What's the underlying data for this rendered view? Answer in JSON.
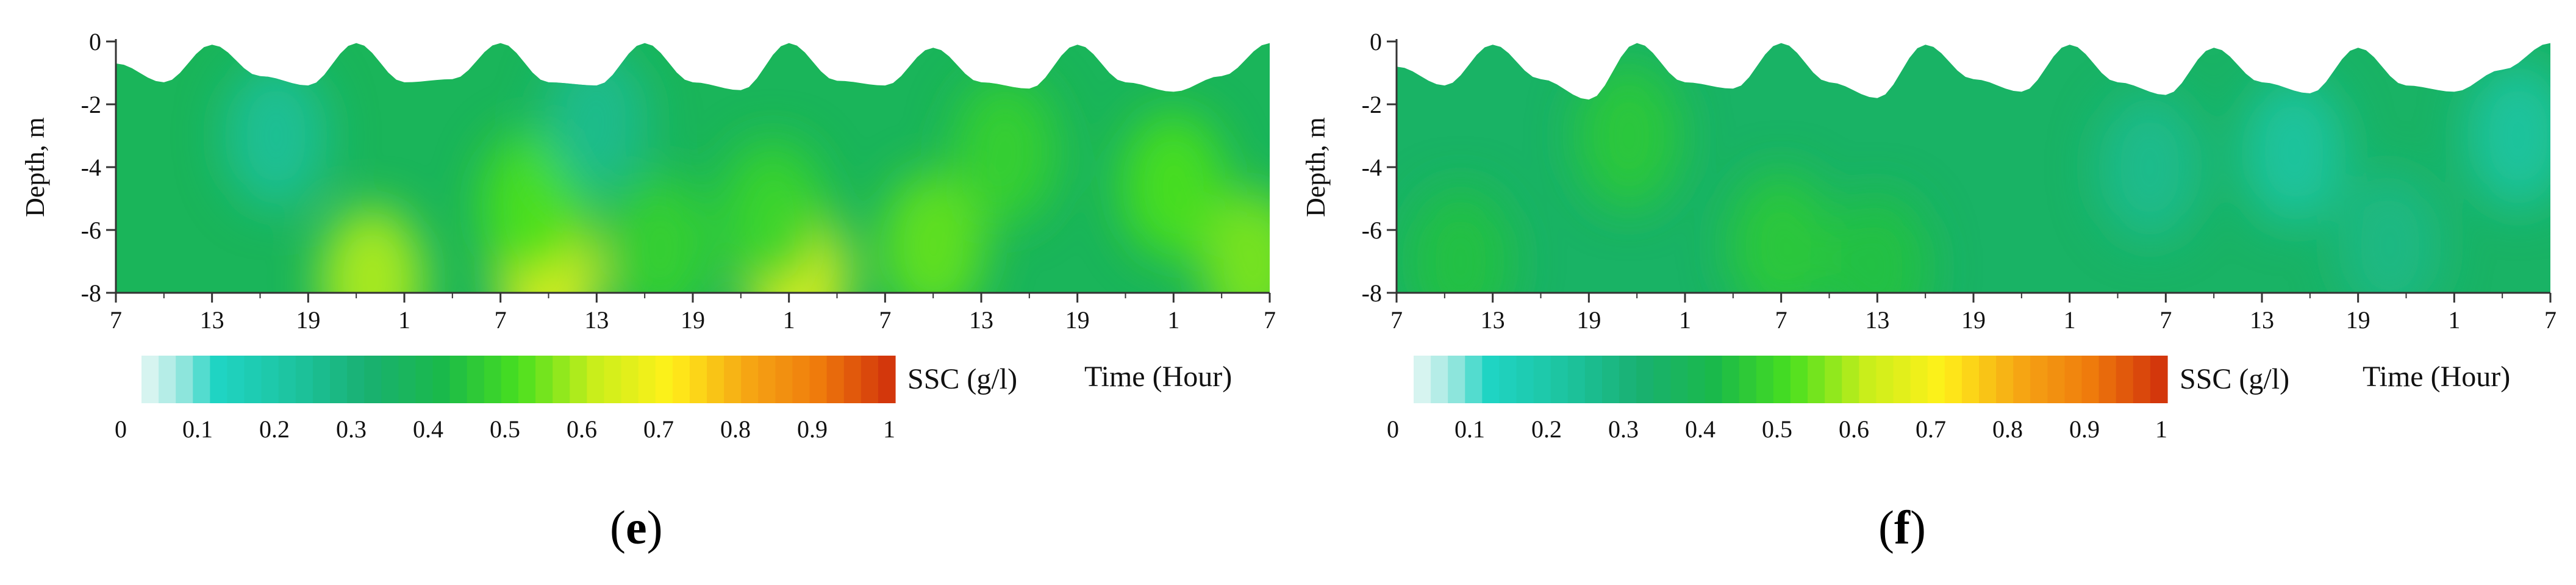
{
  "chart_data": [
    {
      "type": "heatmap",
      "panel_label_open": "(",
      "panel_letter": "e",
      "panel_label_close": ")",
      "ylabel": "Depth, m",
      "xlabel": "Time (Hour)",
      "x_ticks": [
        "7",
        "13",
        "19",
        "1",
        "7",
        "13",
        "19",
        "1",
        "7",
        "13",
        "19",
        "1",
        "7"
      ],
      "x_hours": [
        0,
        6,
        12,
        18,
        24,
        30,
        36,
        42,
        48,
        54,
        60,
        66,
        72
      ],
      "xlim": [
        0,
        72
      ],
      "y_ticks": [
        "0",
        "-2",
        "-4",
        "-6",
        "-8"
      ],
      "y_values": [
        0,
        -2,
        -4,
        -6,
        -8
      ],
      "ylim": [
        -8,
        0
      ],
      "surface_profile": {
        "hours": [
          0,
          3,
          6,
          9,
          12,
          15,
          18,
          21,
          24,
          27,
          30,
          33,
          36,
          39,
          42,
          45,
          48,
          51,
          54,
          57,
          60,
          63,
          66,
          69,
          72
        ],
        "depth": [
          -0.7,
          -1.3,
          -0.1,
          -1.1,
          -1.4,
          -0.05,
          -1.3,
          -1.2,
          -0.05,
          -1.3,
          -1.4,
          -0.05,
          -1.3,
          -1.55,
          -0.05,
          -1.25,
          -1.4,
          -0.2,
          -1.3,
          -1.5,
          -0.1,
          -1.3,
          -1.6,
          -1.1,
          -0.05
        ]
      },
      "ssc_field": {
        "background_ssc": 0.36,
        "patches": [
          {
            "hour": 16,
            "depth": -7.6,
            "ssc": 0.58
          },
          {
            "hour": 27,
            "depth": -7.4,
            "ssc": 0.64
          },
          {
            "hour": 26,
            "depth": -5.2,
            "ssc": 0.5
          },
          {
            "hour": 42.5,
            "depth": -7.5,
            "ssc": 0.64
          },
          {
            "hour": 41,
            "depth": -5.5,
            "ssc": 0.47
          },
          {
            "hour": 51,
            "depth": -6.5,
            "ssc": 0.52
          },
          {
            "hour": 55.5,
            "depth": -3.5,
            "ssc": 0.46
          },
          {
            "hour": 66,
            "depth": -4.6,
            "ssc": 0.5
          },
          {
            "hour": 71,
            "depth": -7.1,
            "ssc": 0.54
          },
          {
            "hour": 34,
            "depth": -6.6,
            "ssc": 0.46
          },
          {
            "hour": 10,
            "depth": -3,
            "ssc": 0.22
          },
          {
            "hour": 30,
            "depth": -2.5,
            "ssc": 0.24
          }
        ]
      },
      "colorbar": {
        "label": "SSC (g/l)",
        "min": 0,
        "max": 1,
        "tick_labels": [
          "0",
          "0.1",
          "0.2",
          "0.3",
          "0.4",
          "0.5",
          "0.6",
          "0.7",
          "0.8",
          "0.9",
          "1"
        ],
        "tick_values": [
          0,
          0.1,
          0.2,
          0.3,
          0.4,
          0.5,
          0.6,
          0.7,
          0.8,
          0.9,
          1
        ],
        "stops": [
          {
            "v": 0,
            "c": "#e6f7f5"
          },
          {
            "v": 0.05,
            "c": "#9ee8e0"
          },
          {
            "v": 0.1,
            "c": "#1fd4c4"
          },
          {
            "v": 0.2,
            "c": "#1dc4a0"
          },
          {
            "v": 0.3,
            "c": "#19b071"
          },
          {
            "v": 0.4,
            "c": "#1ab94a"
          },
          {
            "v": 0.5,
            "c": "#48df1f"
          },
          {
            "v": 0.6,
            "c": "#c8ee1b"
          },
          {
            "v": 0.7,
            "c": "#fff11a"
          },
          {
            "v": 0.8,
            "c": "#f6a814"
          },
          {
            "v": 0.9,
            "c": "#ef7a0c"
          },
          {
            "v": 1,
            "c": "#cf2e0c"
          }
        ]
      }
    },
    {
      "type": "heatmap",
      "panel_label_open": "(",
      "panel_letter": "f",
      "panel_label_close": ")",
      "ylabel": "Depth, m",
      "xlabel": "Time (Hour)",
      "x_ticks": [
        "7",
        "13",
        "19",
        "1",
        "7",
        "13",
        "19",
        "1",
        "7",
        "13",
        "19",
        "1",
        "7"
      ],
      "x_hours": [
        0,
        6,
        12,
        18,
        24,
        30,
        36,
        42,
        48,
        54,
        60,
        66,
        72
      ],
      "xlim": [
        0,
        72
      ],
      "y_ticks": [
        "0",
        "-2",
        "-4",
        "-6",
        "-8"
      ],
      "y_values": [
        0,
        -2,
        -4,
        -6,
        -8
      ],
      "ylim": [
        -8,
        0
      ],
      "surface_profile": {
        "hours": [
          0,
          3,
          6,
          9,
          12,
          15,
          18,
          21,
          24,
          27,
          30,
          33,
          36,
          39,
          42,
          45,
          48,
          51,
          54,
          57,
          60,
          63,
          66,
          69,
          72
        ],
        "depth": [
          -0.8,
          -1.4,
          -0.1,
          -1.2,
          -1.85,
          -0.05,
          -1.3,
          -1.5,
          -0.05,
          -1.3,
          -1.8,
          -0.1,
          -1.2,
          -1.6,
          -0.1,
          -1.3,
          -1.7,
          -0.2,
          -1.3,
          -1.65,
          -0.2,
          -1.4,
          -1.6,
          -0.9,
          -0.05
        ]
      },
      "ssc_field": {
        "background_ssc": 0.33,
        "patches": [
          {
            "hour": 14.5,
            "depth": -3,
            "ssc": 0.44
          },
          {
            "hour": 4,
            "depth": -7,
            "ssc": 0.42
          },
          {
            "hour": 24,
            "depth": -6.5,
            "ssc": 0.44
          },
          {
            "hour": 30,
            "depth": -7.2,
            "ssc": 0.42
          },
          {
            "hour": 56,
            "depth": -3.5,
            "ssc": 0.2
          },
          {
            "hour": 70,
            "depth": -3,
            "ssc": 0.2
          },
          {
            "hour": 47,
            "depth": -4,
            "ssc": 0.24
          },
          {
            "hour": 62,
            "depth": -6.5,
            "ssc": 0.26
          }
        ]
      },
      "colorbar": {
        "label": "SSC (g/l)",
        "min": 0,
        "max": 1,
        "tick_labels": [
          "0",
          "0.1",
          "0.2",
          "0.3",
          "0.4",
          "0.5",
          "0.6",
          "0.7",
          "0.8",
          "0.9",
          "1"
        ],
        "tick_values": [
          0,
          0.1,
          0.2,
          0.3,
          0.4,
          0.5,
          0.6,
          0.7,
          0.8,
          0.9,
          1
        ],
        "stops": [
          {
            "v": 0,
            "c": "#e6f7f5"
          },
          {
            "v": 0.05,
            "c": "#9ee8e0"
          },
          {
            "v": 0.1,
            "c": "#1fd4c4"
          },
          {
            "v": 0.2,
            "c": "#1dc4a0"
          },
          {
            "v": 0.3,
            "c": "#19b071"
          },
          {
            "v": 0.4,
            "c": "#1ab94a"
          },
          {
            "v": 0.5,
            "c": "#48df1f"
          },
          {
            "v": 0.6,
            "c": "#c8ee1b"
          },
          {
            "v": 0.7,
            "c": "#fff11a"
          },
          {
            "v": 0.8,
            "c": "#f6a814"
          },
          {
            "v": 0.9,
            "c": "#ef7a0c"
          },
          {
            "v": 1,
            "c": "#cf2e0c"
          }
        ]
      }
    }
  ]
}
